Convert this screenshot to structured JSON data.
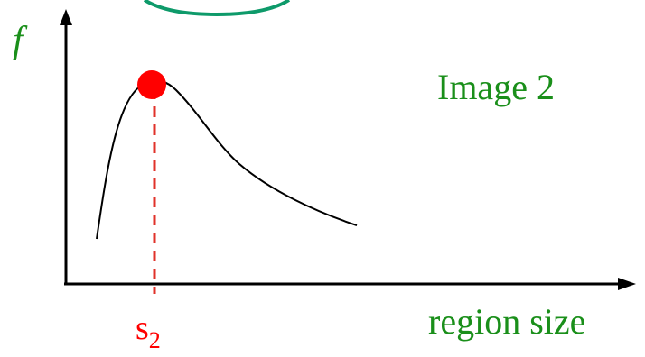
{
  "y_axis_label": "f",
  "title": "Image 2",
  "x_axis_label": "region size",
  "marker": {
    "label": "s",
    "subscript": "2"
  },
  "colors": {
    "title": "#1a8f1a",
    "axis_labels": "#1a8f1a",
    "marker": "#ff0000",
    "dashed_line": "#e0322a",
    "curve": "#000000",
    "axes": "#000000",
    "ellipse": "#0e9a6a"
  }
}
